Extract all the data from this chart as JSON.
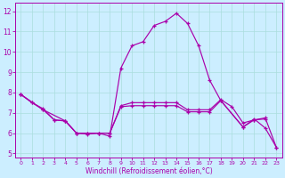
{
  "xlabel": "Windchill (Refroidissement éolien,°C)",
  "background_color": "#cceeff",
  "grid_color": "#aadddd",
  "line_color": "#aa00aa",
  "xlim": [
    -0.5,
    23.5
  ],
  "ylim": [
    4.8,
    12.4
  ],
  "yticks": [
    5,
    6,
    7,
    8,
    9,
    10,
    11,
    12
  ],
  "xticks": [
    0,
    1,
    2,
    3,
    4,
    5,
    6,
    7,
    8,
    9,
    10,
    11,
    12,
    13,
    14,
    15,
    16,
    17,
    18,
    19,
    20,
    21,
    22,
    23
  ],
  "s1_x": [
    0,
    1,
    2,
    3,
    4,
    5,
    6,
    7,
    8,
    9,
    10,
    11,
    12,
    13,
    14,
    15,
    16,
    17,
    18,
    20,
    21,
    22,
    23
  ],
  "s1_y": [
    7.9,
    7.5,
    7.2,
    6.65,
    6.6,
    6.0,
    5.95,
    6.0,
    5.85,
    9.2,
    10.3,
    10.5,
    11.3,
    11.5,
    11.9,
    11.4,
    10.3,
    8.6,
    7.6,
    6.3,
    6.7,
    6.25,
    5.3
  ],
  "s2_x": [
    0,
    1,
    2,
    3,
    4,
    5,
    6,
    7,
    8,
    9,
    10,
    11,
    12,
    13,
    14,
    15,
    16,
    17,
    18,
    20,
    21,
    22
  ],
  "s2_y": [
    7.9,
    7.5,
    7.15,
    6.65,
    6.6,
    6.0,
    6.0,
    6.0,
    6.0,
    7.3,
    7.35,
    7.35,
    7.35,
    7.35,
    7.35,
    7.05,
    7.05,
    7.05,
    7.6,
    6.3,
    6.65,
    6.7
  ],
  "s3_x": [
    0,
    2,
    4,
    5,
    6,
    7,
    8,
    9,
    10,
    11,
    12,
    13,
    14,
    15,
    16,
    17,
    18,
    19,
    20,
    21,
    22,
    23
  ],
  "s3_y": [
    7.9,
    7.15,
    6.6,
    6.0,
    6.0,
    6.0,
    6.0,
    7.35,
    7.5,
    7.5,
    7.5,
    7.5,
    7.5,
    7.15,
    7.15,
    7.15,
    7.65,
    7.3,
    6.5,
    6.65,
    6.75,
    5.3
  ]
}
